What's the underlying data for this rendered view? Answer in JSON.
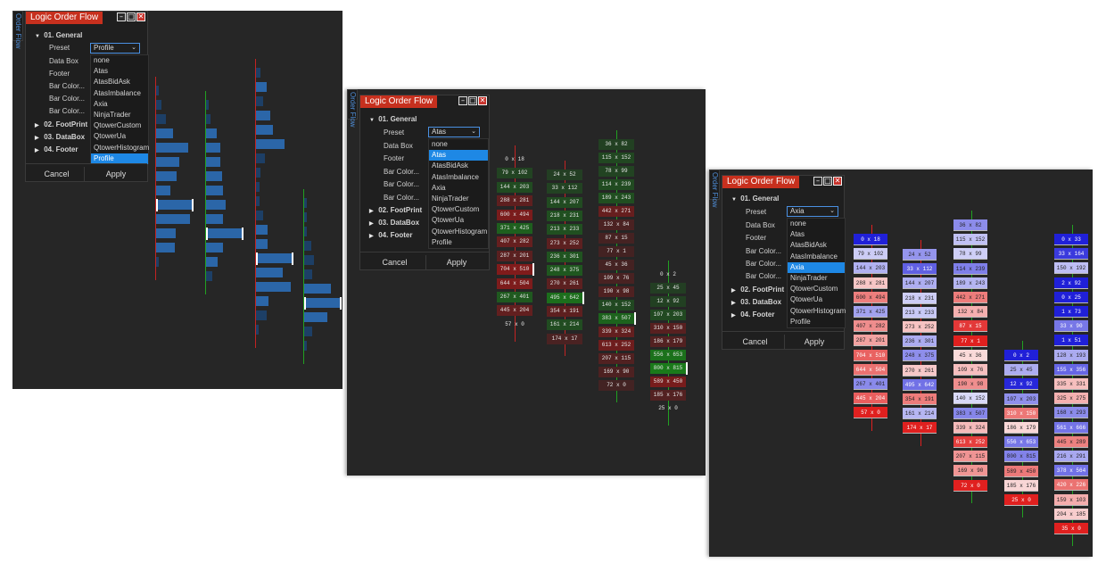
{
  "shots": [
    {
      "side_tab": "Order Flow",
      "title": "Logic Order Flow",
      "win_buttons": [
        "–",
        "□",
        "✕"
      ],
      "section": "01. General",
      "rows": [
        "Preset",
        "Data Box",
        "Footer",
        "Bar Color...",
        "Bar Color...",
        "Bar Color..."
      ],
      "collapsed_sections": [
        "02. FootPrint",
        "03. DataBox",
        "04. Footer"
      ],
      "preset_value": "Profile",
      "options": [
        "none",
        "Atas",
        "AtasBidAsk",
        "AtasImbalance",
        "Axia",
        "NinjaTrader",
        "QtowerCustom",
        "QtowerUa",
        "QtowerHistogram",
        "Profile"
      ],
      "selected_option": "Profile",
      "cancel": "Cancel",
      "apply": "Apply"
    },
    {
      "side_tab": "Order Flow",
      "title": "Logic Order Flow",
      "win_buttons": [
        "–",
        "□",
        "✕"
      ],
      "section": "01. General",
      "rows": [
        "Preset",
        "Data Box",
        "Footer",
        "Bar Color...",
        "Bar Color...",
        "Bar Color..."
      ],
      "collapsed_sections": [
        "02. FootPrint",
        "03. DataBox",
        "04. Footer"
      ],
      "preset_value": "Atas",
      "options": [
        "none",
        "Atas",
        "AtasBidAsk",
        "AtasImbalance",
        "Axia",
        "NinjaTrader",
        "QtowerCustom",
        "QtowerUa",
        "QtowerHistogram",
        "Profile"
      ],
      "selected_option": "Atas",
      "cancel": "Cancel",
      "apply": "Apply"
    },
    {
      "side_tab": "Order Flow",
      "title": "Logic Order Flow",
      "win_buttons": [
        "–",
        "□",
        "✕"
      ],
      "section": "01. General",
      "rows": [
        "Preset",
        "Data Box",
        "Footer",
        "Bar Color...",
        "Bar Color...",
        "Bar Color..."
      ],
      "collapsed_sections": [
        "02. FootPrint",
        "03. DataBox",
        "04. Footer"
      ],
      "preset_value": "Axia",
      "options": [
        "none",
        "Atas",
        "AtasBidAsk",
        "AtasImbalance",
        "Axia",
        "NinjaTrader",
        "QtowerCustom",
        "QtowerUa",
        "QtowerHistogram",
        "Profile"
      ],
      "selected_option": "Axia",
      "cancel": "Cancel",
      "apply": "Apply"
    }
  ],
  "footprint": {
    "col1": [
      "0 x 18",
      "79 x 102",
      "144 x 203",
      "288 x 281",
      "600 x 494",
      "371 x 425",
      "407 x 282",
      "287 x 201",
      "704 x 510",
      "644 x 504",
      "267 x 401",
      "445 x 204",
      "57 x 0"
    ],
    "col2": [
      "24 x 52",
      "33 x 112",
      "144 x 207",
      "218 x 231",
      "213 x 233",
      "273 x 252",
      "236 x 301",
      "248 x 375",
      "270 x 261",
      "495 x 642",
      "354 x 191",
      "161 x 214",
      "174 x 17"
    ],
    "col3": [
      "36 x 82",
      "115 x 152",
      "78 x 99",
      "114 x 239",
      "189 x 243",
      "442 x 271",
      "132 x 84",
      "87 x 15",
      "77 x 1",
      "45 x 36",
      "109 x 76",
      "190 x 98",
      "140 x 152",
      "383 x 507",
      "339 x 324",
      "613 x 252",
      "207 x 115",
      "169 x 90",
      "72 x 0"
    ],
    "col4": [
      "0 x 2",
      "25 x 45",
      "12 x 92",
      "107 x 203",
      "310 x 150",
      "186 x 179",
      "556 x 653",
      "800 x 815",
      "589 x 450",
      "185 x 176",
      "25 x 0"
    ],
    "col5": [
      "0 x 33",
      "33 x 164",
      "150 x 192",
      "2 x 92",
      "0 x 25",
      "1 x 73",
      "33 x 90",
      "1 x 51",
      "128 x 193",
      "155 x 356",
      "335 x 331",
      "325 x 275",
      "168 x 293",
      "561 x 666",
      "445 x 289",
      "216 x 291",
      "378 x 564",
      "420 x 226",
      "159 x 103",
      "204 x 185",
      "35 x 0"
    ]
  },
  "colors": {
    "atas_bid": "#8b1a1a",
    "atas_ask": "#1a7a1a",
    "axia_bid": "#e0201f",
    "axia_ask": "#2020d8",
    "profile_bar": "#2b66a8",
    "selection": "#1e88e5",
    "title_bg": "#c7301e"
  }
}
